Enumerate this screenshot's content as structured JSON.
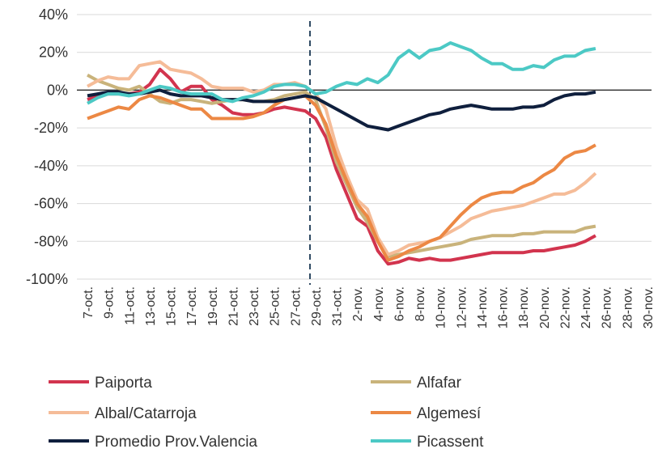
{
  "chart_data": {
    "type": "line",
    "categories": [
      "7-oct.",
      null,
      "9-oct.",
      null,
      "11-oct.",
      null,
      "13-oct.",
      null,
      "15-oct.",
      null,
      "17-oct.",
      null,
      "19-oct.",
      null,
      "21-oct.",
      null,
      "23-oct.",
      null,
      "25-oct.",
      null,
      "27-oct.",
      null,
      "29-oct.",
      null,
      "31-oct.",
      null,
      "2-nov.",
      null,
      "4-nov.",
      null,
      "6-nov.",
      null,
      "8-nov.",
      null,
      "10-nov.",
      null,
      "12-nov.",
      null,
      "14-nov.",
      null,
      "16-nov.",
      null,
      "18-nov.",
      null,
      "20-nov.",
      null,
      "22-nov.",
      null,
      "24-nov.",
      null,
      "26-nov.",
      null,
      "28-nov.",
      null,
      "30-nov."
    ],
    "ylim": [
      -100,
      40
    ],
    "yticks": [
      {
        "value": -100,
        "label": "-100%"
      },
      {
        "value": -80,
        "label": "-80%"
      },
      {
        "value": -60,
        "label": "-60%"
      },
      {
        "value": -40,
        "label": "-40%"
      },
      {
        "value": -20,
        "label": "-20%"
      },
      {
        "value": 0,
        "label": "0%"
      },
      {
        "value": 20,
        "label": "20%"
      },
      {
        "value": 40,
        "label": "40%"
      }
    ],
    "grid": true,
    "series": [
      {
        "name": "Paiporta",
        "color": "#d2344e",
        "values": [
          -5,
          -3,
          -2,
          -2,
          -2,
          -1,
          3,
          11,
          6,
          -1,
          2,
          2,
          -5,
          -8,
          -12,
          -13,
          -13,
          -12,
          -10,
          -9,
          -10,
          -11,
          -15,
          -25,
          -42,
          -55,
          -68,
          -72,
          -85,
          -92,
          -91,
          -89,
          -90,
          -89,
          -90,
          -90,
          -89,
          -88,
          -87,
          -86,
          -86,
          -86,
          -86,
          -85,
          -85,
          -84,
          -83,
          -82,
          -80,
          -77,
          null,
          null,
          null,
          null,
          null
        ]
      },
      {
        "name": "Alfafar",
        "color": "#c9b37b",
        "values": [
          8,
          5,
          3,
          1,
          0,
          2,
          -2,
          -6,
          -7,
          -5,
          -5,
          -6,
          -7,
          -6,
          -5,
          -5,
          -6,
          -6,
          -5,
          -3,
          -2,
          -1,
          -5,
          -20,
          -38,
          -50,
          -62,
          -70,
          -80,
          -88,
          -87,
          -86,
          -85,
          -84,
          -83,
          -82,
          -81,
          -79,
          -78,
          -77,
          -77,
          -77,
          -76,
          -76,
          -75,
          -75,
          -75,
          -75,
          -73,
          -72,
          null,
          null,
          null,
          null,
          null
        ]
      },
      {
        "name": "Albal/Catarroja",
        "color": "#f5bc98",
        "values": [
          2,
          5,
          7,
          6,
          6,
          13,
          14,
          15,
          11,
          10,
          9,
          6,
          2,
          1,
          1,
          1,
          -1,
          0,
          3,
          3,
          4,
          2,
          -2,
          -10,
          -30,
          -45,
          -58,
          -63,
          -78,
          -87,
          -85,
          -82,
          -81,
          -80,
          -78,
          -75,
          -72,
          -68,
          -66,
          -64,
          -63,
          -62,
          -61,
          -59,
          -57,
          -55,
          -55,
          -53,
          -49,
          -44,
          null,
          null,
          null,
          null,
          null
        ]
      },
      {
        "name": "Algemesí",
        "color": "#ec8844",
        "values": [
          -15,
          -13,
          -11,
          -9,
          -10,
          -5,
          -3,
          -4,
          -6,
          -8,
          -10,
          -10,
          -15,
          -15,
          -15,
          -15,
          -14,
          -12,
          -8,
          -5,
          -4,
          -3,
          -8,
          -18,
          -35,
          -48,
          -60,
          -67,
          -80,
          -90,
          -88,
          -85,
          -83,
          -80,
          -78,
          -72,
          -66,
          -61,
          -57,
          -55,
          -54,
          -54,
          -51,
          -49,
          -45,
          -42,
          -36,
          -33,
          -32,
          -29,
          null,
          null,
          null,
          null,
          null
        ]
      },
      {
        "name": "Promedio Prov.Valencia",
        "color": "#0f1f3d",
        "values": [
          -3,
          -2,
          -1,
          -1,
          -2,
          -2,
          -1,
          0,
          -2,
          -3,
          -3,
          -3,
          -4,
          -5,
          -5,
          -5,
          -6,
          -6,
          -6,
          -5,
          -4,
          -3,
          -4,
          -7,
          -10,
          -13,
          -16,
          -19,
          -20,
          -21,
          -19,
          -17,
          -15,
          -13,
          -12,
          -10,
          -9,
          -8,
          -9,
          -10,
          -10,
          -10,
          -9,
          -9,
          -8,
          -5,
          -3,
          -2,
          -2,
          -1,
          null,
          null,
          null,
          null,
          null
        ]
      },
      {
        "name": "Picassent",
        "color": "#4cc9c5",
        "values": [
          -7,
          -4,
          -2,
          -2,
          -3,
          -2,
          0,
          2,
          1,
          -1,
          -2,
          -2,
          -2,
          -5,
          -6,
          -4,
          -3,
          -1,
          2,
          3,
          3,
          2,
          -2,
          -1,
          2,
          4,
          3,
          6,
          4,
          8,
          17,
          21,
          17,
          21,
          22,
          25,
          23,
          21,
          17,
          14,
          14,
          11,
          11,
          13,
          12,
          16,
          18,
          18,
          21,
          22,
          null,
          null,
          null,
          null,
          null
        ]
      }
    ]
  }
}
